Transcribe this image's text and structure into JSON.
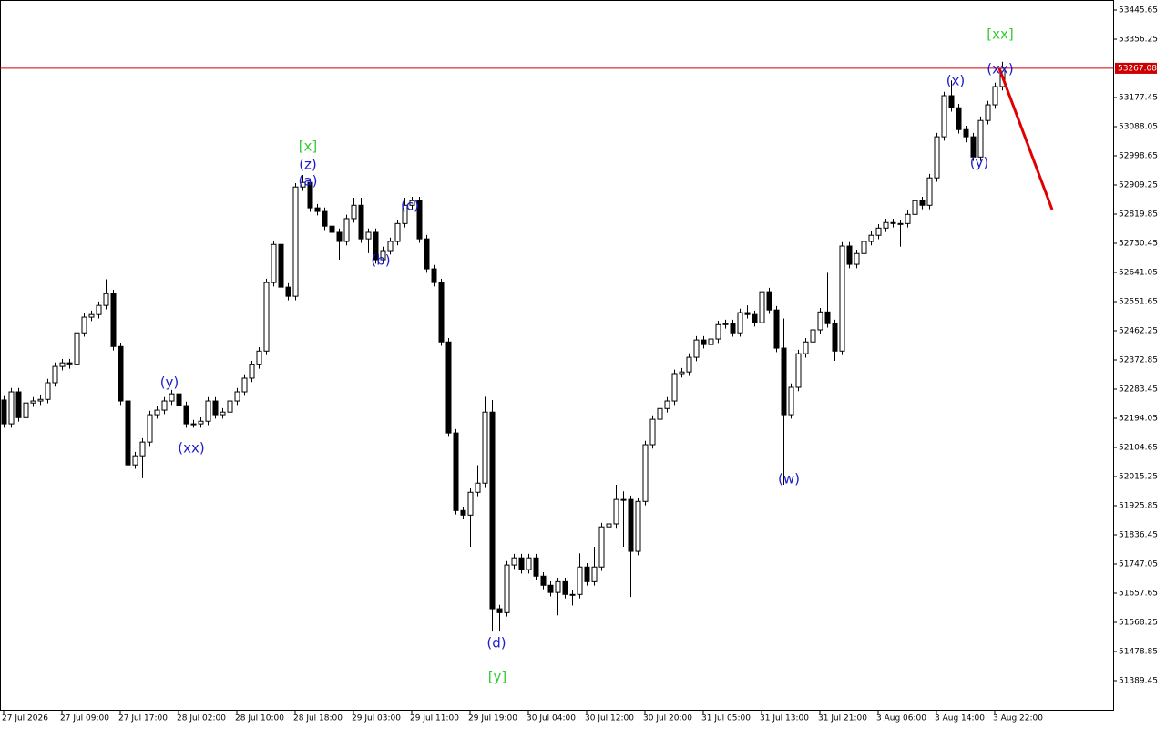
{
  "chart_data": {
    "type": "candlestick",
    "categories": [
      "27 Jul 2026",
      null,
      null,
      null,
      null,
      null,
      null,
      null,
      "27 Jul 09:00",
      null,
      null,
      null,
      null,
      null,
      null,
      null,
      "27 Jul 17:00",
      null,
      null,
      null,
      null,
      null,
      null,
      null,
      "28 Jul 02:00",
      null,
      null,
      null,
      null,
      null,
      null,
      null,
      "28 Jul 10:00",
      null,
      null,
      null,
      null,
      null,
      null,
      null,
      "28 Jul 18:00",
      null,
      null,
      null,
      null,
      null,
      null,
      null,
      "29 Jul 03:00",
      null,
      null,
      null,
      null,
      null,
      null,
      null,
      "29 Jul 11:00",
      null,
      null,
      null,
      null,
      null,
      null,
      null,
      "29 Jul 19:00",
      null,
      null,
      null,
      null,
      null,
      null,
      null,
      "30 Jul 04:00",
      null,
      null,
      null,
      null,
      null,
      null,
      null,
      "30 Jul 12:00",
      null,
      null,
      null,
      null,
      null,
      null,
      null,
      "30 Jul 20:00",
      null,
      null,
      null,
      null,
      null,
      null,
      null,
      "31 Jul 05:00",
      null,
      null,
      null,
      null,
      null,
      null,
      null,
      "31 Jul 13:00",
      null,
      null,
      null,
      null,
      null,
      null,
      null,
      "31 Jul 21:00",
      null,
      null,
      null,
      null,
      null,
      null,
      null,
      "3 Aug 06:00",
      null,
      null,
      null,
      null,
      null,
      null,
      null,
      "3 Aug 14:00",
      null,
      null,
      null,
      null,
      null,
      null,
      null,
      "3 Aug 22:00",
      null
    ],
    "open": [
      52250,
      52177,
      52275,
      52196,
      52241,
      52247,
      52252,
      52303,
      52353,
      52364,
      52358,
      52456,
      52504,
      52512,
      52540,
      52576,
      52414,
      52247,
      52051,
      52079,
      52121,
      52205,
      52219,
      52247,
      52269,
      52233,
      52177,
      52177,
      52185,
      52247,
      52205,
      52213,
      52247,
      52275,
      52317,
      52358,
      52400,
      52610,
      52727,
      52596,
      52568,
      52903,
      52917,
      52839,
      52828,
      52783,
      52764,
      52736,
      52806,
      52847,
      52744,
      52764,
      52680,
      52708,
      52736,
      52791,
      52847,
      52861,
      52744,
      52652,
      52610,
      52428,
      52149,
      51911,
      51897,
      51967,
      51995,
      52213,
      51610,
      51598,
      51744,
      51766,
      51730,
      51766,
      51710,
      51682,
      51660,
      51693,
      51654,
      51654,
      51738,
      51693,
      51738,
      51861,
      51870,
      51945,
      51945,
      51786,
      51939,
      52113,
      52191,
      52224,
      52247,
      52331,
      52336,
      52381,
      52434,
      52420,
      52437,
      52481,
      52484,
      52456,
      52518,
      52512,
      52487,
      52582,
      52526,
      52409,
      52205,
      52289,
      52392,
      52428,
      52465,
      52520,
      52484,
      52400,
      52722,
      52666,
      52699,
      52736,
      52755,
      52777,
      52794,
      52791,
      52791,
      52819,
      52861,
      52847,
      52931,
      53057,
      53183,
      53146,
      53079,
      53057,
      52995,
      53107,
      53155,
      53211
    ],
    "high": [
      52262,
      52287,
      52287,
      52253,
      52259,
      52264,
      52315,
      52365,
      52376,
      52376,
      52468,
      52516,
      52524,
      52552,
      52620,
      52588,
      52426,
      52259,
      52091,
      52133,
      52217,
      52231,
      52259,
      52281,
      52281,
      52245,
      52189,
      52197,
      52259,
      52259,
      52225,
      52259,
      52287,
      52329,
      52370,
      52412,
      52622,
      52739,
      52739,
      52608,
      52915,
      52940,
      52929,
      52851,
      52840,
      52795,
      52776,
      52818,
      52870,
      52870,
      52776,
      52776,
      52720,
      52748,
      52803,
      52870,
      52873,
      52873,
      52756,
      52664,
      52622,
      52440,
      52161,
      51923,
      51979,
      52050,
      52260,
      52250,
      51622,
      51756,
      51778,
      51778,
      51778,
      51778,
      51722,
      51694,
      51705,
      51705,
      51666,
      51780,
      51750,
      51800,
      51873,
      51920,
      51990,
      51970,
      51957,
      51951,
      52125,
      52203,
      52236,
      52259,
      52343,
      52348,
      52393,
      52446,
      52446,
      52449,
      52493,
      52496,
      52496,
      52530,
      52540,
      52524,
      52594,
      52594,
      52538,
      52500,
      52301,
      52404,
      52440,
      52520,
      52532,
      52640,
      52496,
      52734,
      52734,
      52711,
      52748,
      52767,
      52789,
      52806,
      52806,
      52803,
      52831,
      52873,
      52873,
      52943,
      53069,
      53195,
      53230,
      53158,
      53091,
      53069,
      53119,
      53167,
      53223,
      53287
    ],
    "low": [
      52165,
      52165,
      52184,
      52184,
      52229,
      52235,
      52240,
      52291,
      52341,
      52346,
      52346,
      52444,
      52492,
      52500,
      52528,
      52402,
      52235,
      52030,
      52039,
      52010,
      52109,
      52193,
      52207,
      52235,
      52221,
      52165,
      52165,
      52165,
      52173,
      52193,
      52193,
      52201,
      52235,
      52263,
      52305,
      52346,
      52388,
      52598,
      52470,
      52556,
      52556,
      52891,
      52827,
      52816,
      52771,
      52752,
      52680,
      52724,
      52794,
      52732,
      52700,
      52668,
      52668,
      52696,
      52724,
      52779,
      52835,
      52732,
      52640,
      52598,
      52416,
      52137,
      51899,
      51885,
      51800,
      51955,
      51983,
      51540,
      51540,
      51586,
      51732,
      51718,
      51718,
      51698,
      51670,
      51648,
      51590,
      51642,
      51620,
      51642,
      51681,
      51681,
      51726,
      51849,
      51858,
      51800,
      51646,
      51774,
      51927,
      52101,
      52179,
      52212,
      52235,
      52319,
      52324,
      52369,
      52408,
      52408,
      52425,
      52469,
      52444,
      52444,
      52500,
      52475,
      52475,
      52514,
      52397,
      51990,
      52193,
      52277,
      52380,
      52416,
      52453,
      52472,
      52370,
      52388,
      52654,
      52654,
      52687,
      52724,
      52743,
      52765,
      52779,
      52720,
      52779,
      52807,
      52835,
      52835,
      52919,
      53045,
      53134,
      53067,
      53040,
      52983,
      52983,
      53095,
      53143,
      53199
    ],
    "close": [
      52177,
      52275,
      52196,
      52241,
      52247,
      52252,
      52303,
      52353,
      52364,
      52358,
      52456,
      52504,
      52512,
      52540,
      52576,
      52414,
      52247,
      52051,
      52079,
      52121,
      52205,
      52219,
      52247,
      52269,
      52233,
      52177,
      52177,
      52185,
      52247,
      52205,
      52213,
      52247,
      52275,
      52317,
      52358,
      52400,
      52610,
      52727,
      52596,
      52568,
      52903,
      52917,
      52839,
      52828,
      52783,
      52764,
      52736,
      52806,
      52847,
      52744,
      52764,
      52680,
      52708,
      52736,
      52791,
      52847,
      52861,
      52744,
      52652,
      52610,
      52428,
      52149,
      51911,
      51897,
      51967,
      51995,
      52213,
      51610,
      51598,
      51744,
      51766,
      51730,
      51766,
      51710,
      51682,
      51660,
      51693,
      51654,
      51654,
      51738,
      51693,
      51738,
      51861,
      51870,
      51945,
      51945,
      51786,
      51939,
      52113,
      52191,
      52224,
      52247,
      52331,
      52336,
      52381,
      52434,
      52420,
      52437,
      52481,
      52484,
      52456,
      52518,
      52512,
      52487,
      52582,
      52526,
      52409,
      52205,
      52289,
      52392,
      52428,
      52465,
      52520,
      52484,
      52400,
      52722,
      52666,
      52699,
      52736,
      52755,
      52777,
      52794,
      52791,
      52791,
      52819,
      52861,
      52847,
      52931,
      53057,
      53183,
      53146,
      53079,
      53057,
      52995,
      53107,
      53155,
      53211,
      53267.08
    ],
    "up_color": "#ffffff",
    "down_color": "#000000",
    "ylim": [
      51300.05,
      53476.38
    ],
    "yticks": [
      53445.65,
      53356.25,
      53177.45,
      53088.05,
      52998.65,
      52909.25,
      52819.85,
      52730.45,
      52641.05,
      52551.65,
      52462.25,
      52372.85,
      52283.45,
      52194.05,
      52104.65,
      52015.25,
      51925.85,
      51836.45,
      51747.05,
      51657.65,
      51568.25,
      51478.85,
      51389.45
    ],
    "price_line": {
      "value": 53267.08,
      "color": "#cc0000"
    },
    "annotations": [
      {
        "text": "[xx]",
        "color": "#33cc33"
      },
      {
        "text": "(xx)",
        "color": "#1c1ccc"
      },
      {
        "text": "(x)",
        "color": "#1c1ccc"
      },
      {
        "text": "(y)",
        "color": "#1c1ccc"
      },
      {
        "text": "(w)",
        "color": "#1c1ccc"
      },
      {
        "text": "[y]",
        "color": "#33cc33"
      },
      {
        "text": "(d)",
        "color": "#1c1ccc"
      },
      {
        "text": "(c)",
        "color": "#1c1ccc"
      },
      {
        "text": "(b)",
        "color": "#1c1ccc"
      },
      {
        "text": "(a)",
        "color": "#1c1ccc"
      },
      {
        "text": "(z)",
        "color": "#1c1ccc"
      },
      {
        "text": "[x]",
        "color": "#33cc33"
      },
      {
        "text": "(y)",
        "color": "#1c1ccc"
      },
      {
        "text": "(xx)",
        "color": "#1c1ccc"
      }
    ]
  }
}
